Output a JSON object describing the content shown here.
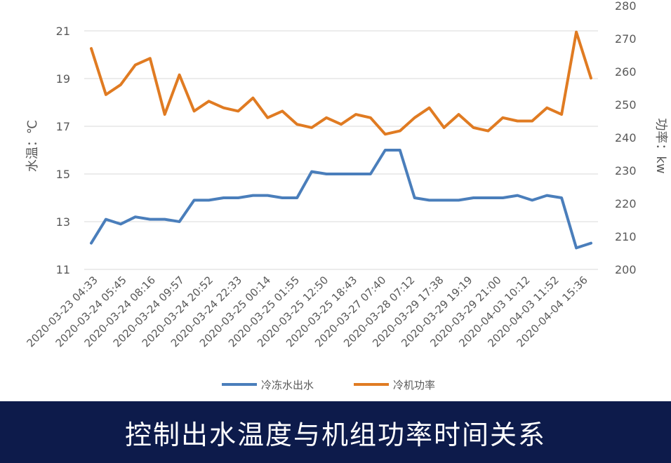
{
  "caption": "控制出水温度与机组功率时间关系",
  "colors": {
    "water": "#4a7ebb",
    "power": "#e07b22",
    "grid": "#d9d9d9",
    "caption_bg": "#0d1b4b"
  },
  "chart_data": {
    "type": "line",
    "title": "",
    "ylabel": "水温：℃",
    "y2label": "功率：kw",
    "ylim": [
      11,
      21
    ],
    "y2lim": [
      200,
      280
    ],
    "yticks": [
      "11",
      "13",
      "15",
      "17",
      "19",
      "21"
    ],
    "y2ticks": [
      "200",
      "210",
      "220",
      "230",
      "240",
      "250",
      "260",
      "270",
      "280"
    ],
    "xtick_labels": [
      "2020-03-23 04:33",
      "2020-03-24 05:45",
      "2020-03-24 08:16",
      "2020-03-24 09:57",
      "2020-03-24 20:52",
      "2020-03-24 22:33",
      "2020-03-25 00:14",
      "2020-03-25 01:55",
      "2020-03-25 12:50",
      "2020-03-25 18:43",
      "2020-03-27 07:40",
      "2020-03-28 07:12",
      "2020-03-29 17:38",
      "2020-03-29 19:19",
      "2020-03-29 21:00",
      "2020-04-03 10:12",
      "2020-04-03 11:52",
      "2020-04-04 15:36"
    ],
    "grid": true,
    "legend_position": "bottom",
    "series": [
      {
        "name": "冷冻水出水",
        "axis": "left",
        "values": [
          12.1,
          13.1,
          12.9,
          13.2,
          13.1,
          13.1,
          13.0,
          13.9,
          13.9,
          14.0,
          14.0,
          14.1,
          14.1,
          14.0,
          14.0,
          15.1,
          15.0,
          15.0,
          15.0,
          15.0,
          16.0,
          16.0,
          14.0,
          13.9,
          13.9,
          13.9,
          14.0,
          14.0,
          14.0,
          14.1,
          13.9,
          14.1,
          14.0,
          11.9,
          12.1
        ]
      },
      {
        "name": "冷机功率",
        "axis": "right",
        "values": [
          267,
          253,
          256,
          262,
          264,
          247,
          259,
          248,
          251,
          249,
          248,
          252,
          246,
          248,
          244,
          243,
          246,
          244,
          247,
          246,
          241,
          242,
          246,
          249,
          243,
          247,
          243,
          242,
          246,
          245,
          245,
          249,
          247,
          272,
          258
        ]
      }
    ]
  }
}
